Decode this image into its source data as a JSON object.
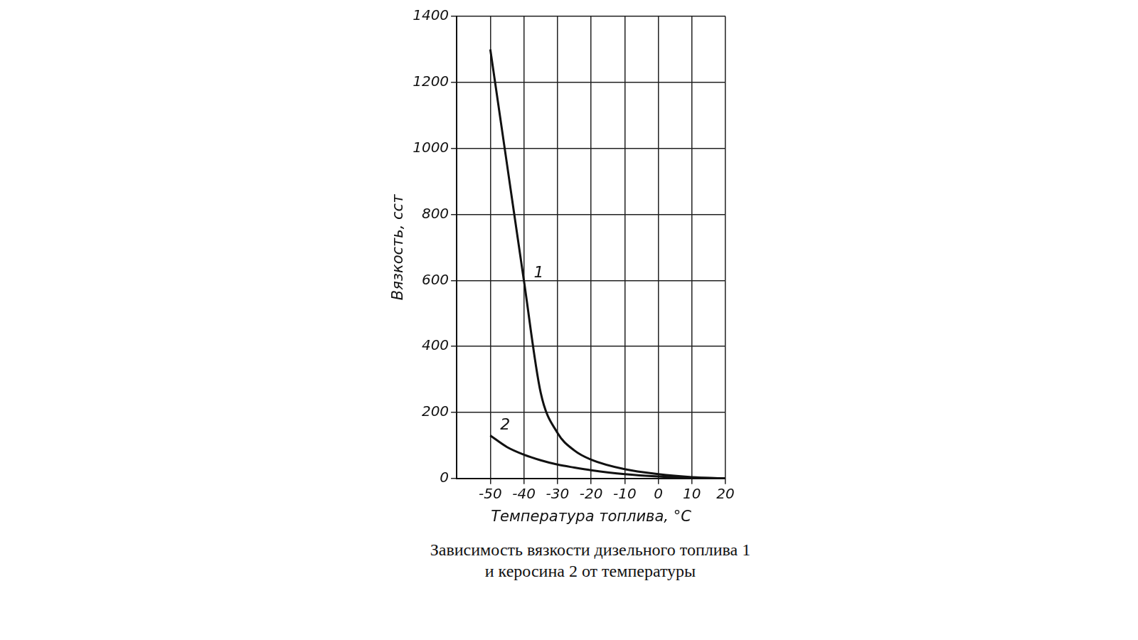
{
  "chart_data": {
    "type": "line",
    "title": "Зависимость вязкости дизельного топлива 1 и керосина 2 от температуры",
    "x_label": "Температура топлива, °C",
    "y_label": "Вязкость, сст",
    "x": [
      -50,
      -45,
      -40,
      -35,
      -30,
      -25,
      -20,
      -10,
      0,
      10,
      20
    ],
    "xlim": [
      -60,
      20
    ],
    "xticks": [
      -50,
      -40,
      -30,
      -20,
      -10,
      0,
      10,
      20
    ],
    "ylim": [
      0,
      1400
    ],
    "yticks": [
      0,
      200,
      400,
      600,
      800,
      1000,
      1200,
      1400
    ],
    "grid": true,
    "series": [
      {
        "name": "1",
        "color": "#111111",
        "values": [
          1300,
          950,
          600,
          260,
          138,
          85,
          57,
          28,
          13,
          4,
          0
        ]
      },
      {
        "name": "2",
        "color": "#111111",
        "values": [
          130,
          95,
          72,
          55,
          42,
          33,
          25,
          13,
          6,
          2,
          0
        ]
      }
    ]
  }
}
